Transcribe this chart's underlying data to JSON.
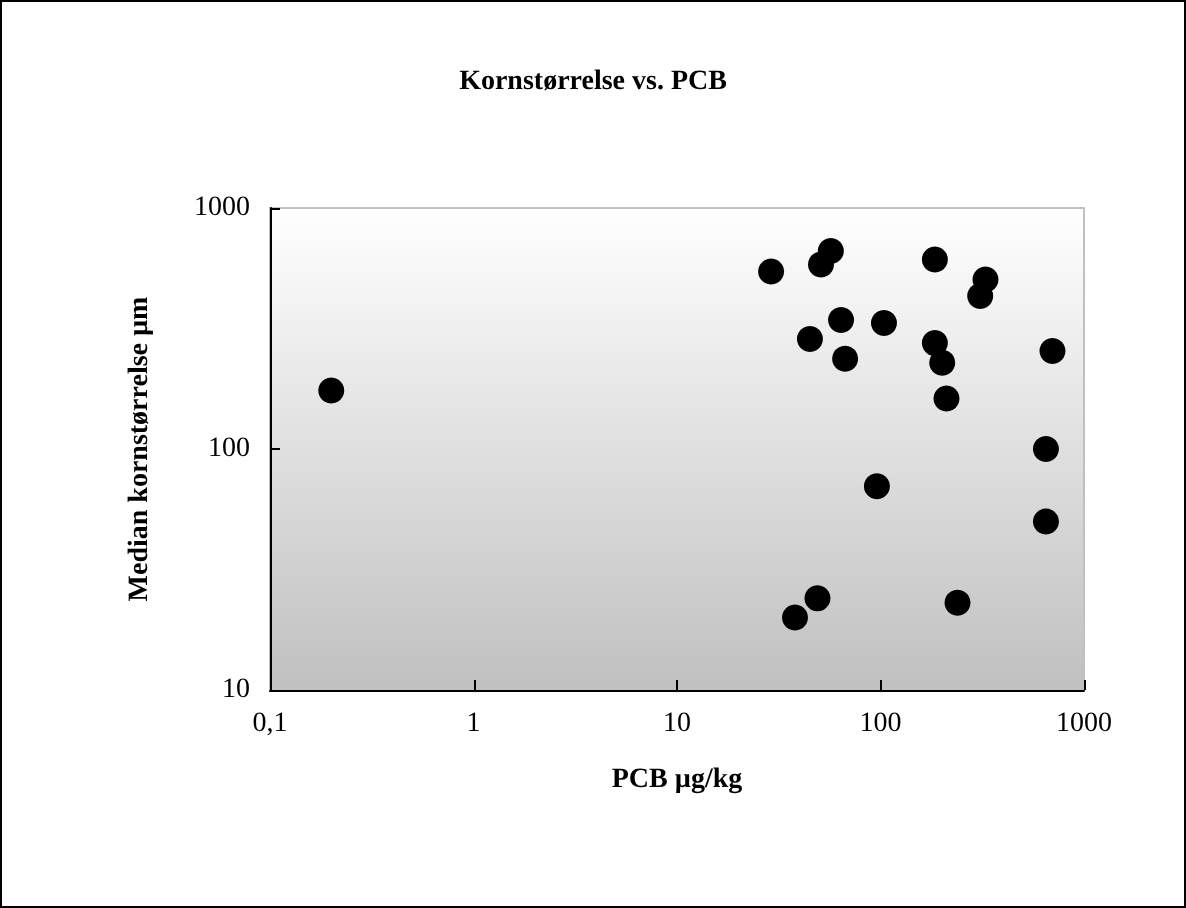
{
  "chart_data": {
    "type": "scatter",
    "title": "Kornstørrelse vs. PCB",
    "xlabel": "PCB µg/kg",
    "ylabel": "Median kornstørrelse µm",
    "log": "xy",
    "xlim": [
      0.1,
      1000
    ],
    "xticks": [
      {
        "value": 0.1,
        "label": "0,1"
      },
      1,
      10,
      100,
      1000
    ],
    "ylim": [
      10,
      1000
    ],
    "yticks": [
      10,
      100,
      1000
    ],
    "grid": false,
    "marker": "circle",
    "series": [
      {
        "color": "#000000",
        "x": [
          0.2,
          29,
          51,
          57,
          45,
          64,
          67,
          104,
          185,
          185,
          201,
          211,
          328,
          309,
          96,
          49,
          38,
          239,
          650,
          650,
          700
        ],
        "values": [
          175,
          545,
          583,
          663,
          286,
          343,
          237,
          333,
          611,
          275,
          228,
          162,
          505,
          431,
          70,
          24,
          20,
          23,
          100,
          50,
          255
        ]
      }
    ]
  }
}
